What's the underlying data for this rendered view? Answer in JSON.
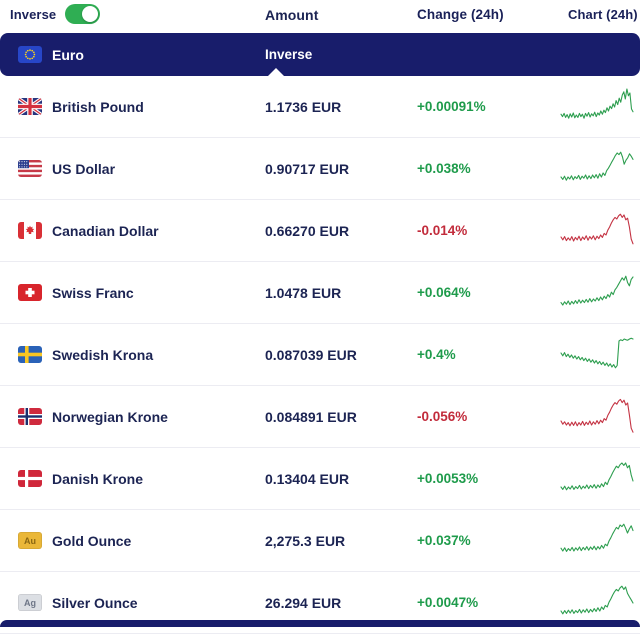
{
  "toolbar": {
    "inverse_label": "Inverse",
    "inverse_toggle_state": "on",
    "columns": {
      "amount": "Amount",
      "change": "Change (24h)",
      "chart": "Chart (24h)"
    }
  },
  "group_header": {
    "currency": "Euro",
    "icon": "flag-eu",
    "column_label": "Inverse"
  },
  "colors": {
    "navy_header": "#181d6b",
    "positive_green": "#1e9b4b",
    "negative_red": "#c22b3b",
    "spark_green": "#2d9e4f",
    "spark_red": "#c43343",
    "toggle_green": "#2fae53",
    "gold_badge": "#eab738",
    "silver_badge": "#dcdfe4"
  },
  "rows": [
    {
      "name": "British Pound",
      "icon": "flag-gb",
      "amount": "1.1736 EUR",
      "change": "+0.00091%",
      "trend": "up",
      "spark": [
        32,
        26,
        34,
        24,
        31,
        22,
        33,
        25,
        35,
        23,
        30,
        24,
        34,
        26,
        32,
        22,
        34,
        27,
        36,
        25,
        33,
        28,
        37,
        26,
        35,
        30,
        40,
        32,
        42,
        36,
        48,
        40,
        52,
        46,
        58,
        50,
        66,
        56,
        72,
        62,
        80,
        88,
        70,
        95,
        78,
        85,
        45,
        38
      ]
    },
    {
      "name": "US Dollar",
      "icon": "flag-us",
      "amount": "0.90717 EUR",
      "change": "+0.038%",
      "trend": "up",
      "spark": [
        30,
        24,
        32,
        22,
        30,
        25,
        33,
        23,
        31,
        26,
        34,
        24,
        32,
        27,
        35,
        25,
        33,
        26,
        35,
        28,
        36,
        27,
        38,
        30,
        40,
        34,
        46,
        52,
        60,
        68,
        76,
        84,
        90,
        86,
        92,
        80,
        62,
        72,
        78,
        88,
        82,
        74
      ]
    },
    {
      "name": "Canadian Dollar",
      "icon": "flag-ca",
      "amount": "0.66270 EUR",
      "change": "-0.014%",
      "trend": "down",
      "spark": [
        35,
        28,
        36,
        26,
        33,
        27,
        36,
        25,
        34,
        28,
        37,
        26,
        35,
        29,
        38,
        27,
        36,
        30,
        38,
        28,
        37,
        31,
        40,
        34,
        44,
        40,
        52,
        60,
        70,
        78,
        84,
        80,
        88,
        92,
        84,
        90,
        78,
        82,
        60,
        30,
        18
      ]
    },
    {
      "name": "Swiss Franc",
      "icon": "flag-ch",
      "amount": "1.0478 EUR",
      "change": "+0.064%",
      "trend": "up",
      "spark": [
        26,
        20,
        28,
        22,
        30,
        21,
        29,
        23,
        31,
        24,
        33,
        25,
        32,
        26,
        34,
        27,
        36,
        28,
        35,
        30,
        38,
        31,
        40,
        33,
        42,
        36,
        46,
        40,
        52,
        46,
        58,
        64,
        72,
        80,
        88,
        82,
        92,
        76,
        68,
        84,
        90
      ]
    },
    {
      "name": "Swedish Krona",
      "icon": "flag-se",
      "amount": "0.087039 EUR",
      "change": "+0.4%",
      "trend": "up",
      "spark": [
        55,
        48,
        56,
        46,
        52,
        44,
        50,
        42,
        48,
        40,
        46,
        38,
        44,
        36,
        42,
        34,
        40,
        32,
        38,
        30,
        36,
        28,
        34,
        26,
        32,
        24,
        30,
        22,
        28,
        20,
        26,
        18,
        24,
        85,
        88,
        86,
        90,
        88,
        87,
        90,
        92,
        90
      ]
    },
    {
      "name": "Norwegian Krone",
      "icon": "flag-no",
      "amount": "0.084891 EUR",
      "change": "-0.056%",
      "trend": "down",
      "spark": [
        40,
        32,
        38,
        30,
        36,
        28,
        37,
        29,
        38,
        28,
        36,
        30,
        39,
        29,
        37,
        31,
        40,
        30,
        38,
        32,
        41,
        33,
        42,
        36,
        46,
        42,
        54,
        62,
        72,
        80,
        86,
        82,
        90,
        94,
        86,
        92,
        80,
        85,
        55,
        22,
        12
      ]
    },
    {
      "name": "Danish Krone",
      "icon": "flag-dk",
      "amount": "0.13404 EUR",
      "change": "+0.0053%",
      "trend": "up",
      "spark": [
        30,
        24,
        32,
        23,
        30,
        25,
        33,
        24,
        31,
        26,
        34,
        25,
        32,
        27,
        35,
        26,
        34,
        28,
        36,
        27,
        35,
        29,
        38,
        31,
        42,
        36,
        48,
        56,
        66,
        74,
        82,
        78,
        86,
        90,
        84,
        90,
        78,
        84,
        60,
        45
      ]
    },
    {
      "name": "Gold Ounce",
      "icon": "badge-au",
      "amount": "2,275.3 EUR",
      "change": "+0.037%",
      "trend": "up",
      "spark": [
        32,
        25,
        33,
        24,
        31,
        26,
        34,
        25,
        33,
        27,
        35,
        26,
        34,
        28,
        36,
        27,
        35,
        29,
        37,
        28,
        36,
        30,
        39,
        32,
        42,
        38,
        50,
        58,
        68,
        76,
        84,
        80,
        90,
        86,
        92,
        82,
        70,
        80,
        88,
        76
      ]
    },
    {
      "name": "Silver Ounce",
      "icon": "badge-ag",
      "amount": "26.294 EUR",
      "change": "+0.0047%",
      "trend": "up",
      "spark": [
        30,
        23,
        31,
        24,
        32,
        25,
        33,
        24,
        31,
        26,
        34,
        25,
        33,
        27,
        35,
        26,
        34,
        28,
        36,
        29,
        38,
        30,
        40,
        34,
        44,
        40,
        52,
        60,
        70,
        78,
        84,
        80,
        88,
        92,
        84,
        90,
        74,
        66,
        58,
        50
      ]
    }
  ],
  "badges": {
    "gold": "Au",
    "silver": "Ag"
  }
}
